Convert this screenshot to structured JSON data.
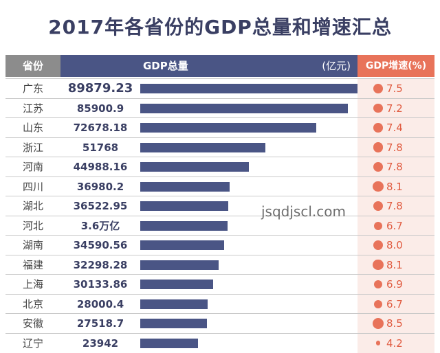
{
  "title": "2017年各省份的GDP总量和增速汇总",
  "header": {
    "province": "省份",
    "gdp": "GDP总量",
    "unit": "(亿元)",
    "rate": "GDP增速(%)"
  },
  "watermark": "jsqdjscl.com",
  "colors": {
    "bar": "#4a5585",
    "accent": "#e8735a",
    "header_gray": "#8c8c8c"
  },
  "chart_data": {
    "type": "bar",
    "title": "2017年各省份的GDP总量和增速汇总",
    "xlabel": "GDP总量(亿元)",
    "ylabel": "省份",
    "categories": [
      "广东",
      "江苏",
      "山东",
      "浙江",
      "河南",
      "四川",
      "湖北",
      "河北",
      "湖南",
      "福建",
      "上海",
      "北京",
      "安徽",
      "辽宁"
    ],
    "value_labels": [
      "89879.23",
      "85900.9",
      "72678.18",
      "51768",
      "44988.16",
      "36980.2",
      "36522.95",
      "3.6万亿",
      "34590.56",
      "32298.28",
      "30133.86",
      "28000.4",
      "27518.7",
      "23942"
    ],
    "series": [
      {
        "name": "GDP总量",
        "values": [
          89879.23,
          85900.9,
          72678.18,
          51768,
          44988.16,
          36980.2,
          36522.95,
          36000,
          34590.56,
          32298.28,
          30133.86,
          28000.4,
          27518.7,
          23942
        ]
      },
      {
        "name": "GDP增速",
        "values": [
          7.5,
          7.2,
          7.4,
          7.8,
          7.8,
          8.1,
          7.8,
          6.7,
          8.0,
          8.1,
          6.9,
          6.7,
          8.5,
          4.2
        ],
        "labels": [
          "7.5",
          "7.2",
          "7.4",
          "7.8",
          "7.8",
          "8.1",
          "7.8",
          "6.7",
          "8.0",
          "8.1",
          "6.9",
          "6.7",
          "8.5",
          "4.2"
        ]
      }
    ],
    "xlim": [
      0,
      89879.23
    ]
  }
}
